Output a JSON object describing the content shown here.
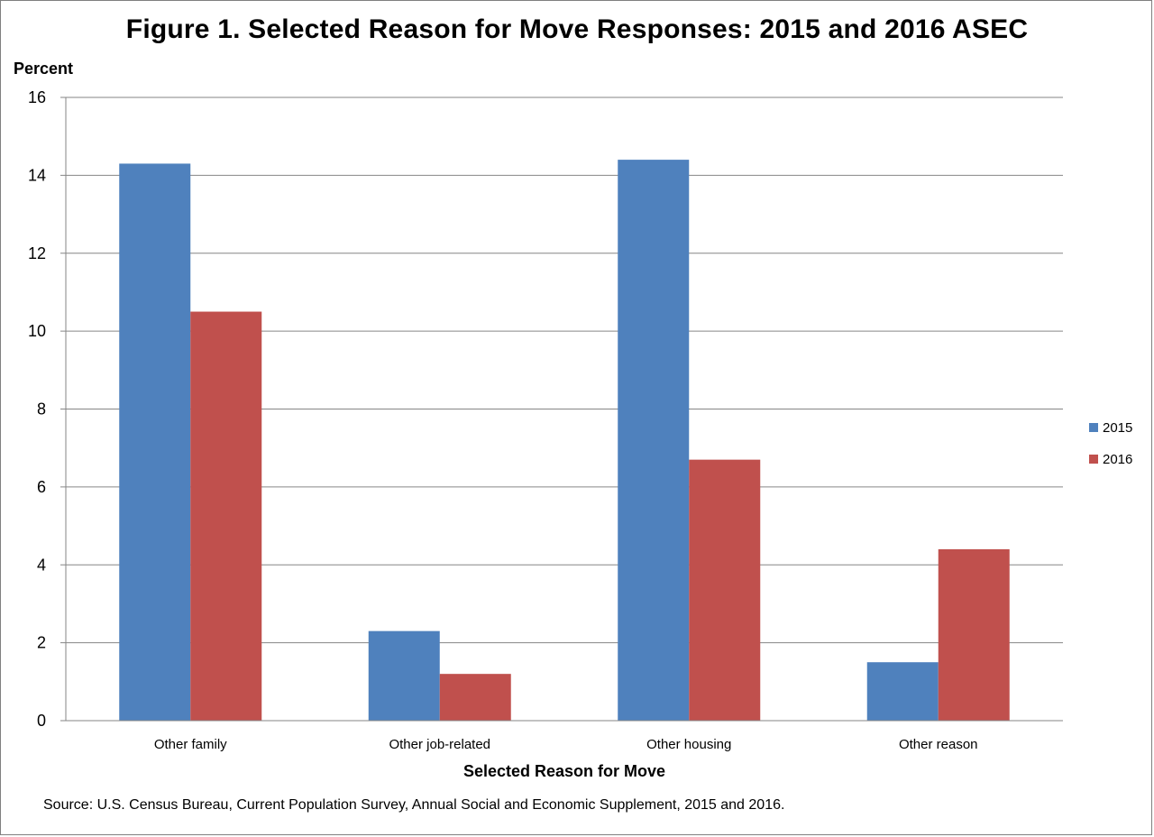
{
  "chart_data": {
    "type": "bar",
    "title": "Figure 1. Selected Reason for Move Responses: 2015 and 2016 ASEC",
    "ylabel": "Percent",
    "xlabel": "Selected Reason for Move",
    "categories": [
      "Other family",
      "Other job-related",
      "Other housing",
      "Other reason"
    ],
    "series": [
      {
        "name": "2015",
        "color": "#4f81bd",
        "values": [
          14.3,
          2.3,
          14.4,
          1.5
        ]
      },
      {
        "name": "2016",
        "color": "#c0504d",
        "values": [
          10.5,
          1.2,
          6.7,
          4.4
        ]
      }
    ],
    "ylim": [
      0,
      16
    ],
    "yticks": [
      0,
      2,
      4,
      6,
      8,
      10,
      12,
      14,
      16
    ],
    "grid": true,
    "legend_position": "right"
  },
  "source": "Source: U.S. Census Bureau, Current Population Survey, Annual Social and Economic Supplement, 2015 and 2016."
}
